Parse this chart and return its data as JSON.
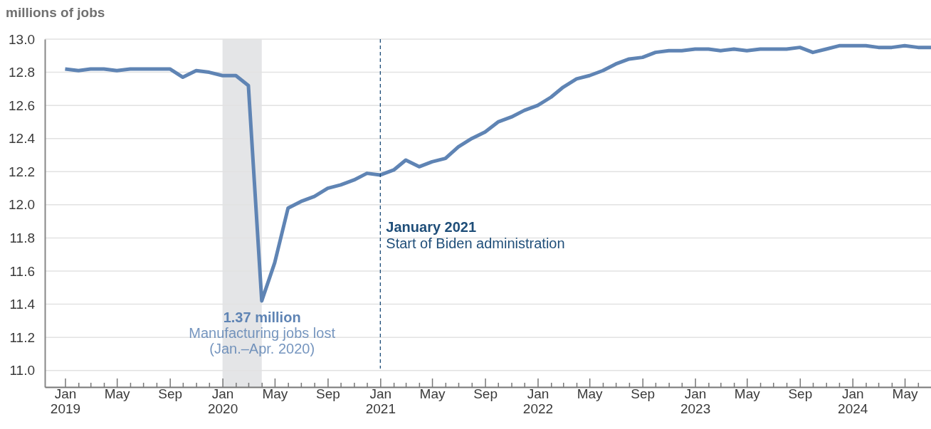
{
  "chart_data": {
    "type": "line",
    "ylabel": "millions of jobs",
    "x": [
      "2019-01",
      "2019-02",
      "2019-03",
      "2019-04",
      "2019-05",
      "2019-06",
      "2019-07",
      "2019-08",
      "2019-09",
      "2019-10",
      "2019-11",
      "2019-12",
      "2020-01",
      "2020-02",
      "2020-03",
      "2020-04",
      "2020-05",
      "2020-06",
      "2020-07",
      "2020-08",
      "2020-09",
      "2020-10",
      "2020-11",
      "2020-12",
      "2021-01",
      "2021-02",
      "2021-03",
      "2021-04",
      "2021-05",
      "2021-06",
      "2021-07",
      "2021-08",
      "2021-09",
      "2021-10",
      "2021-11",
      "2021-12",
      "2022-01",
      "2022-02",
      "2022-03",
      "2022-04",
      "2022-05",
      "2022-06",
      "2022-07",
      "2022-08",
      "2022-09",
      "2022-10",
      "2022-11",
      "2022-12",
      "2023-01",
      "2023-02",
      "2023-03",
      "2023-04",
      "2023-05",
      "2023-06",
      "2023-07",
      "2023-08",
      "2023-09",
      "2023-10",
      "2023-11",
      "2023-12",
      "2024-01",
      "2024-02",
      "2024-03",
      "2024-04",
      "2024-05",
      "2024-06",
      "2024-07"
    ],
    "series": [
      {
        "color": "#5f84b4",
        "values": [
          12.82,
          12.81,
          12.82,
          12.82,
          12.81,
          12.82,
          12.82,
          12.82,
          12.82,
          12.77,
          12.81,
          12.8,
          12.78,
          12.78,
          12.72,
          11.42,
          11.65,
          11.98,
          12.02,
          12.05,
          12.1,
          12.12,
          12.15,
          12.19,
          12.18,
          12.21,
          12.27,
          12.23,
          12.26,
          12.28,
          12.35,
          12.4,
          12.44,
          12.5,
          12.53,
          12.57,
          12.6,
          12.65,
          12.71,
          12.76,
          12.78,
          12.81,
          12.85,
          12.88,
          12.89,
          12.92,
          12.93,
          12.93,
          12.94,
          12.94,
          12.93,
          12.94,
          12.93,
          12.94,
          12.94,
          12.94,
          12.95,
          12.92,
          12.94,
          12.96,
          12.96,
          12.96,
          12.95,
          12.95,
          12.96,
          12.95,
          12.95
        ]
      }
    ],
    "xlim": [
      "2018-11-15",
      "2024-07-01"
    ],
    "xticks": [
      {
        "value": "2019-01",
        "label": "Jan\n2019"
      },
      {
        "value": "2019-02",
        "label": null
      },
      {
        "value": "2019-03",
        "label": null
      },
      {
        "value": "2019-04",
        "label": null
      },
      {
        "value": "2019-05",
        "label": "May"
      },
      {
        "value": "2019-06",
        "label": null
      },
      {
        "value": "2019-07",
        "label": null
      },
      {
        "value": "2019-08",
        "label": null
      },
      {
        "value": "2019-09",
        "label": "Sep"
      },
      {
        "value": "2019-10",
        "label": null
      },
      {
        "value": "2019-11",
        "label": null
      },
      {
        "value": "2019-12",
        "label": null
      },
      {
        "value": "2020-01",
        "label": "Jan\n2020"
      },
      {
        "value": "2020-02",
        "label": null
      },
      {
        "value": "2020-03",
        "label": null
      },
      {
        "value": "2020-04",
        "label": null
      },
      {
        "value": "2020-05",
        "label": "May"
      },
      {
        "value": "2020-06",
        "label": null
      },
      {
        "value": "2020-07",
        "label": null
      },
      {
        "value": "2020-08",
        "label": null
      },
      {
        "value": "2020-09",
        "label": "Sep"
      },
      {
        "value": "2020-10",
        "label": null
      },
      {
        "value": "2020-11",
        "label": null
      },
      {
        "value": "2020-12",
        "label": null
      },
      {
        "value": "2021-01",
        "label": "Jan\n2021"
      },
      {
        "value": "2021-02",
        "label": null
      },
      {
        "value": "2021-03",
        "label": null
      },
      {
        "value": "2021-04",
        "label": null
      },
      {
        "value": "2021-05",
        "label": "May"
      },
      {
        "value": "2021-06",
        "label": null
      },
      {
        "value": "2021-07",
        "label": null
      },
      {
        "value": "2021-08",
        "label": null
      },
      {
        "value": "2021-09",
        "label": "Sep"
      },
      {
        "value": "2021-10",
        "label": null
      },
      {
        "value": "2021-11",
        "label": null
      },
      {
        "value": "2021-12",
        "label": null
      },
      {
        "value": "2022-01",
        "label": "Jan\n2022"
      },
      {
        "value": "2022-02",
        "label": null
      },
      {
        "value": "2022-03",
        "label": null
      },
      {
        "value": "2022-04",
        "label": null
      },
      {
        "value": "2022-05",
        "label": "May"
      },
      {
        "value": "2022-06",
        "label": null
      },
      {
        "value": "2022-07",
        "label": null
      },
      {
        "value": "2022-08",
        "label": null
      },
      {
        "value": "2022-09",
        "label": "Sep"
      },
      {
        "value": "2022-10",
        "label": null
      },
      {
        "value": "2022-11",
        "label": null
      },
      {
        "value": "2022-12",
        "label": null
      },
      {
        "value": "2023-01",
        "label": "Jan\n2023"
      },
      {
        "value": "2023-02",
        "label": null
      },
      {
        "value": "2023-03",
        "label": null
      },
      {
        "value": "2023-04",
        "label": null
      },
      {
        "value": "2023-05",
        "label": "May"
      },
      {
        "value": "2023-06",
        "label": null
      },
      {
        "value": "2023-07",
        "label": null
      },
      {
        "value": "2023-08",
        "label": null
      },
      {
        "value": "2023-09",
        "label": "Sep"
      },
      {
        "value": "2023-10",
        "label": null
      },
      {
        "value": "2023-11",
        "label": null
      },
      {
        "value": "2023-12",
        "label": null
      },
      {
        "value": "2024-01",
        "label": "Jan\n2024"
      },
      {
        "value": "2024-02",
        "label": null
      },
      {
        "value": "2024-03",
        "label": null
      },
      {
        "value": "2024-04",
        "label": null
      },
      {
        "value": "2024-05",
        "label": "May"
      },
      {
        "value": "2024-06",
        "label": null
      }
    ],
    "ylim": [
      10.9,
      13.0
    ],
    "yticks": [
      {
        "value": 11,
        "label": "11.0"
      },
      {
        "value": 11.2,
        "label": "11.2"
      },
      {
        "value": 11.4,
        "label": "11.4"
      },
      {
        "value": 11.6,
        "label": "11.6"
      },
      {
        "value": 11.8,
        "label": "11.8"
      },
      {
        "value": 12,
        "label": "12.0"
      },
      {
        "value": 12.2,
        "label": "12.2"
      },
      {
        "value": 12.4,
        "label": "12.4"
      },
      {
        "value": 12.6,
        "label": "12.6"
      },
      {
        "value": 12.8,
        "label": "12.8"
      },
      {
        "value": 13,
        "label": "13.0"
      }
    ],
    "grid": "y",
    "marker": "none",
    "line_style": "solid",
    "bands": [
      {
        "axis": "x",
        "from": "2020-01",
        "to": "2020-04",
        "color": "#e4e5e7",
        "label": "1.37 million\nManufacturing jobs lost\n(Jan.–Apr. 2020)"
      }
    ],
    "ref_lines": [
      {
        "axis": "x",
        "value": "2021-01",
        "color": "#1f4e79",
        "line_style": "dashed",
        "label": "January 2021\nStart of Biden administration"
      }
    ]
  }
}
